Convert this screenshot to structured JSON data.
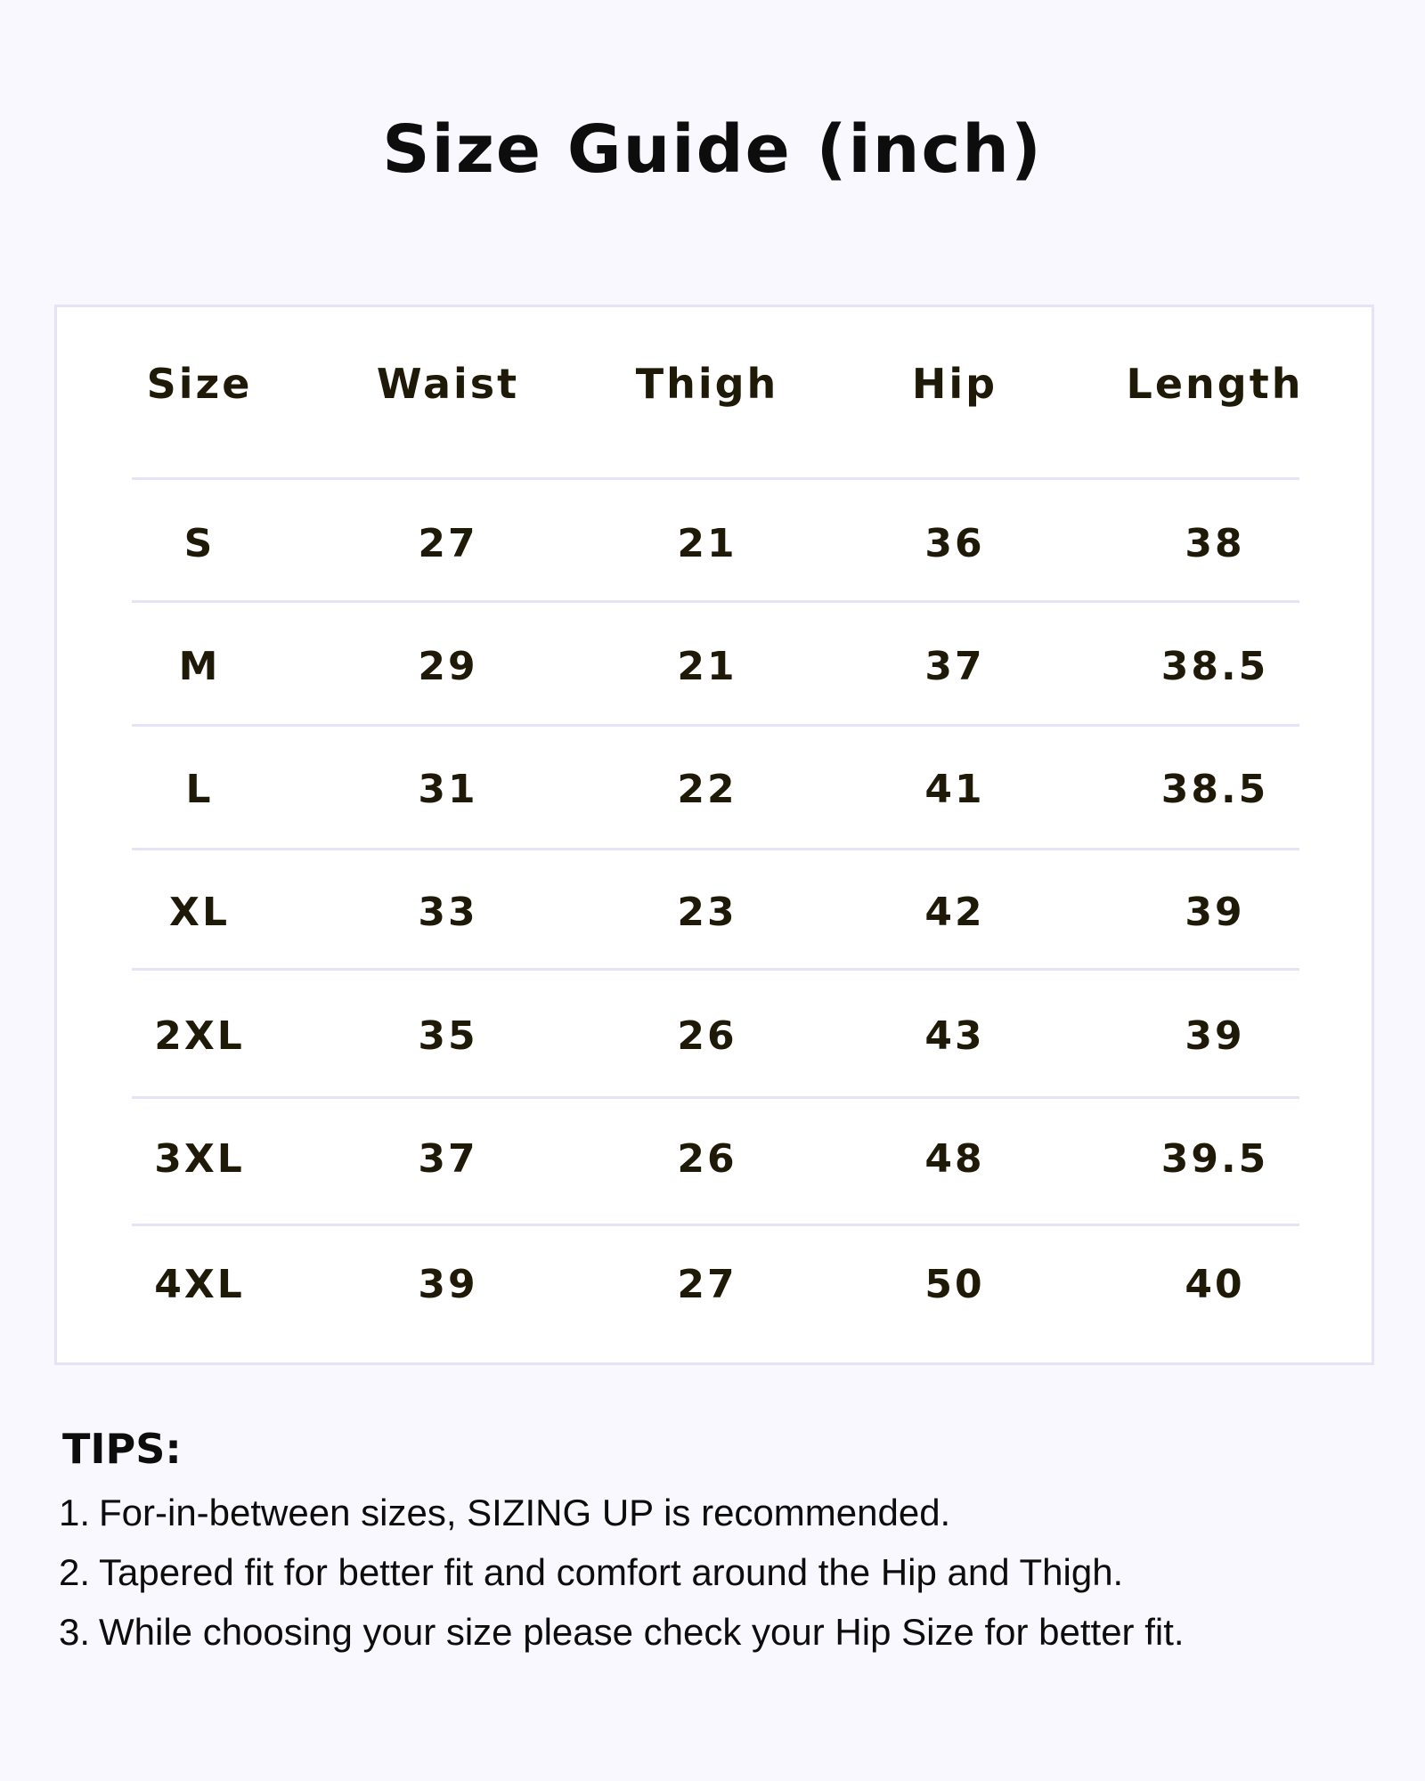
{
  "title": "Size Guide (inch)",
  "table": {
    "headers": [
      "Size",
      "Waist",
      "Thigh",
      "Hip",
      "Length"
    ],
    "rows": [
      [
        "S",
        "27",
        "21",
        "36",
        "38"
      ],
      [
        "M",
        "29",
        "21",
        "37",
        "38.5"
      ],
      [
        "L",
        "31",
        "22",
        "41",
        "38.5"
      ],
      [
        "XL",
        "33",
        "23",
        "42",
        "39"
      ],
      [
        "2XL",
        "35",
        "26",
        "43",
        "39"
      ],
      [
        "3XL",
        "37",
        "26",
        "48",
        "39.5"
      ],
      [
        "4XL",
        "39",
        "27",
        "50",
        "40"
      ]
    ]
  },
  "tips": {
    "heading": "TIPS:",
    "items": [
      {
        "num": "1.",
        "text": "For-in-between sizes, SIZING UP is recommended."
      },
      {
        "num": "2.",
        "text": "Tapered fit for better fit and comfort around the Hip and Thigh."
      },
      {
        "num": "3.",
        "text": "While choosing your size please check your Hip Size for better fit."
      }
    ]
  },
  "colors": {
    "background": "#f8f8fe",
    "border": "#e4e4f6",
    "text": "#1f1a08"
  }
}
